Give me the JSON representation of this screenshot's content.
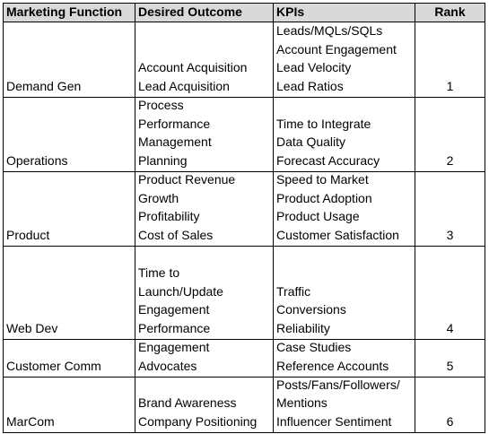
{
  "table": {
    "header": [
      "Marketing Function",
      "Desired Outcome",
      "KPIs",
      "Rank"
    ],
    "rows": [
      {
        "function": "Demand Gen",
        "outcome": [
          "Account Acquisition",
          "Lead Acquisition"
        ],
        "kpis": [
          "Leads/MQLs/SQLs",
          "Account Engagement",
          "Lead Velocity",
          "Lead Ratios"
        ],
        "rank": 1
      },
      {
        "function": "Operations",
        "outcome": [
          "Process",
          "Performance",
          "Management",
          "Planning"
        ],
        "kpis": [
          "Time to Integrate",
          "Data Quality",
          "Forecast Accuracy"
        ],
        "rank": 2
      },
      {
        "function": "Product",
        "outcome": [
          "Product Revenue",
          "Growth",
          "Profitability",
          "Cost of Sales"
        ],
        "kpis": [
          "Speed to Market",
          "Product Adoption",
          "Product Usage",
          "Customer Satisfaction"
        ],
        "rank": 3
      },
      {
        "function": "Web Dev",
        "outcome": [
          "Time to",
          "Launch/Update",
          "Engagement",
          "Performance"
        ],
        "kpis": [
          "Traffic",
          "Conversions",
          "Reliability"
        ],
        "rank": 4
      },
      {
        "function": "Customer Comm",
        "outcome": [
          "Engagement",
          "Advocates"
        ],
        "kpis": [
          "Case Studies",
          "Reference Accounts"
        ],
        "rank": 5
      },
      {
        "function": "MarCom",
        "outcome": [
          "Brand Awareness",
          "Company Positioning"
        ],
        "kpis": [
          "Posts/Fans/Followers/",
          "Mentions",
          "Influencer Sentiment"
        ],
        "rank": 6
      }
    ]
  }
}
